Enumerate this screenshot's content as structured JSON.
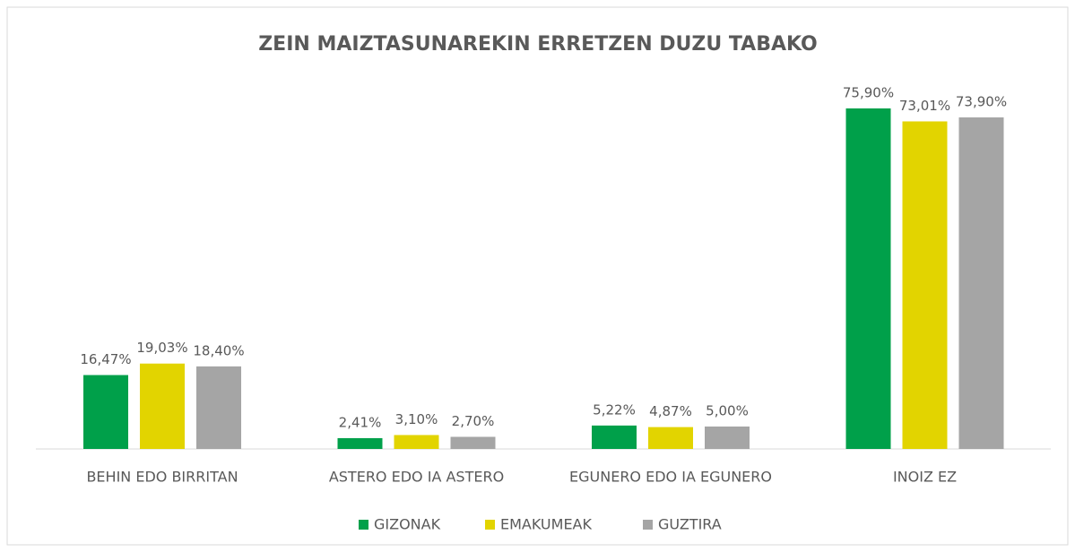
{
  "chart_data": {
    "type": "bar",
    "title": "ZEIN MAIZTASUNAREKIN ERRETZEN DUZU TABAKO",
    "categories": [
      "BEHIN EDO BIRRITAN",
      "ASTERO EDO IA ASTERO",
      "EGUNERO EDO IA EGUNERO",
      "INOIZ EZ"
    ],
    "series": [
      {
        "name": "GIZONAK",
        "color": "#00a04a",
        "values": [
          16.47,
          2.41,
          5.22,
          75.9
        ],
        "value_labels": [
          "16,47%",
          "2,41%",
          "5,22%",
          "75,90%"
        ]
      },
      {
        "name": "EMAKUMEAK",
        "color": "#e2d400",
        "values": [
          19.03,
          3.1,
          4.87,
          73.01
        ],
        "value_labels": [
          "19,03%",
          "3,10%",
          "4,87%",
          "73,01%"
        ]
      },
      {
        "name": "GUZTIRA",
        "color": "#a5a5a5",
        "values": [
          18.4,
          2.7,
          5.0,
          73.9
        ],
        "value_labels": [
          "18,40%",
          "2,70%",
          "5,00%",
          "73,90%"
        ]
      }
    ],
    "legend": "bottom"
  }
}
